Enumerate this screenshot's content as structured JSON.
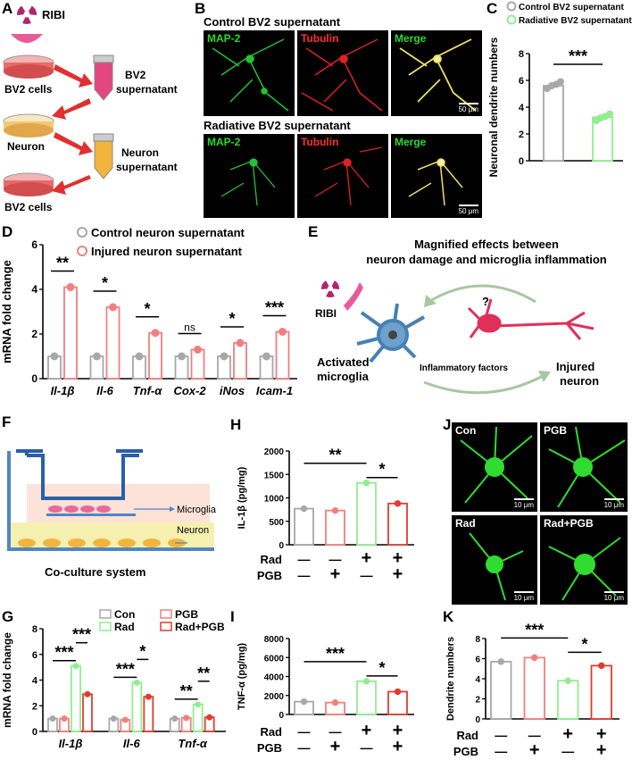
{
  "panel_labels": [
    "A",
    "B",
    "C",
    "D",
    "E",
    "F",
    "G",
    "H",
    "I",
    "J",
    "K"
  ],
  "A": {
    "ribi": "RIBI",
    "bv2_cells": "BV2 cells",
    "neuron": "Neuron",
    "bv2_cells_2": "BV2 cells",
    "bv2_sup_1": "BV2",
    "bv2_sup_2": "supernatant",
    "neuron_sup_1": "Neuron",
    "neuron_sup_2": "supernatant"
  },
  "B": {
    "row1_title": "Control BV2 supernatant",
    "row2_title": "Radiative BV2 supernatant",
    "map2": "MAP-2",
    "tubulin": "Tubulin",
    "merge": "Merge",
    "scale": "50 μm"
  },
  "E": {
    "title_1": "Magnified effects between",
    "title_2": "neuron damage and microglia inflammation",
    "ribi": "RIBI",
    "question": "?",
    "activated_1": "Activated",
    "activated_2": "microglia",
    "inflammatory": "Inflammatory factors",
    "injured_1": "Injured",
    "injured_2": "neuron"
  },
  "F": {
    "microglia": "Microglia",
    "neuron": "Neuron",
    "caption": "Co-culture system"
  },
  "J": {
    "con": "Con",
    "pgb": "PGB",
    "rad": "Rad",
    "radpgb": "Rad+PGB",
    "scale": "10 μm"
  },
  "colors": {
    "gray": "#a8a8a8",
    "pink": "#f08080",
    "green": "#90ee90",
    "red": "#e03c31"
  },
  "chart_data": [
    {
      "id": "C",
      "type": "bar",
      "ylabel": "Neuronal dendrite numbers",
      "ylim": [
        0,
        8
      ],
      "yticks": [
        0,
        2,
        4,
        6,
        8
      ],
      "legend": [
        "Control BV2 supernatant",
        "Radiative BV2 supernatant"
      ],
      "significance": [
        "***"
      ],
      "series": [
        {
          "name": "Control BV2 supernatant",
          "values": [
            5.6
          ],
          "points": [
            5.4,
            5.6,
            5.7,
            5.9
          ]
        },
        {
          "name": "Radiative BV2 supernatant",
          "values": [
            3.25
          ],
          "points": [
            3.0,
            3.2,
            3.3,
            3.5
          ]
        }
      ]
    },
    {
      "id": "D",
      "type": "bar",
      "ylabel": "mRNA fold change",
      "ylim": [
        0,
        6
      ],
      "yticks": [
        0,
        2,
        4,
        6
      ],
      "categories": [
        "Il-1β",
        "Il-6",
        "Tnf-α",
        "Cox-2",
        "iNos",
        "Icam-1"
      ],
      "legend": [
        "Control neuron supernatant",
        "Injured neuron supernatant"
      ],
      "significance": [
        "**",
        "*",
        "*",
        "ns",
        "*",
        "***"
      ],
      "series": [
        {
          "name": "Control neuron supernatant",
          "values": [
            1.0,
            1.0,
            1.0,
            1.0,
            1.0,
            1.0
          ]
        },
        {
          "name": "Injured neuron supernatant",
          "values": [
            4.1,
            3.2,
            2.05,
            1.3,
            1.6,
            2.1
          ]
        }
      ]
    },
    {
      "id": "G",
      "type": "bar",
      "ylabel": "mRNA fold change",
      "ylim": [
        0,
        8
      ],
      "yticks": [
        0,
        2,
        4,
        6,
        8
      ],
      "categories": [
        "Il-1β",
        "Il-6",
        "Tnf-α"
      ],
      "legend": [
        "Con",
        "PGB",
        "Rad",
        "Rad+PGB"
      ],
      "significance": [
        "***",
        "***",
        "***",
        "*",
        "**",
        "**"
      ],
      "series": [
        {
          "name": "Con",
          "values": [
            1.0,
            1.0,
            1.0
          ]
        },
        {
          "name": "PGB",
          "values": [
            1.0,
            0.9,
            1.05
          ]
        },
        {
          "name": "Rad",
          "values": [
            5.1,
            3.8,
            2.1
          ]
        },
        {
          "name": "Rad+PGB",
          "values": [
            2.9,
            2.7,
            1.1
          ]
        }
      ]
    },
    {
      "id": "H",
      "type": "bar",
      "ylabel": "IL-1β (pg/mg)",
      "ylim": [
        0,
        2000
      ],
      "yticks": [
        0,
        500,
        1000,
        1500,
        2000
      ],
      "significance": [
        "**",
        "*"
      ],
      "rows": [
        {
          "label": "Rad",
          "signs": [
            "—",
            "—",
            "+",
            "+"
          ]
        },
        {
          "label": "PGB",
          "signs": [
            "—",
            "+",
            "—",
            "+"
          ]
        }
      ],
      "values": [
        770,
        730,
        1320,
        880
      ]
    },
    {
      "id": "I",
      "type": "bar",
      "ylabel": "TNF-α (pg/mg)",
      "ylim": [
        0,
        8000
      ],
      "yticks": [
        0,
        2000,
        4000,
        6000,
        8000
      ],
      "significance": [
        "***",
        "*"
      ],
      "rows": [
        {
          "label": "Rad",
          "signs": [
            "—",
            "—",
            "+",
            "+"
          ]
        },
        {
          "label": "PGB",
          "signs": [
            "—",
            "+",
            "—",
            "+"
          ]
        }
      ],
      "values": [
        1350,
        1250,
        3500,
        2400
      ]
    },
    {
      "id": "K",
      "type": "bar",
      "ylabel": "Dendrite numbers",
      "ylim": [
        0,
        8
      ],
      "yticks": [
        0,
        2,
        4,
        6,
        8
      ],
      "significance": [
        "***",
        "*"
      ],
      "rows": [
        {
          "label": "Rad",
          "signs": [
            "—",
            "—",
            "+",
            "+"
          ]
        },
        {
          "label": "PGB",
          "signs": [
            "—",
            "+",
            "—",
            "+"
          ]
        }
      ],
      "values": [
        5.7,
        6.1,
        3.8,
        5.3
      ]
    }
  ]
}
